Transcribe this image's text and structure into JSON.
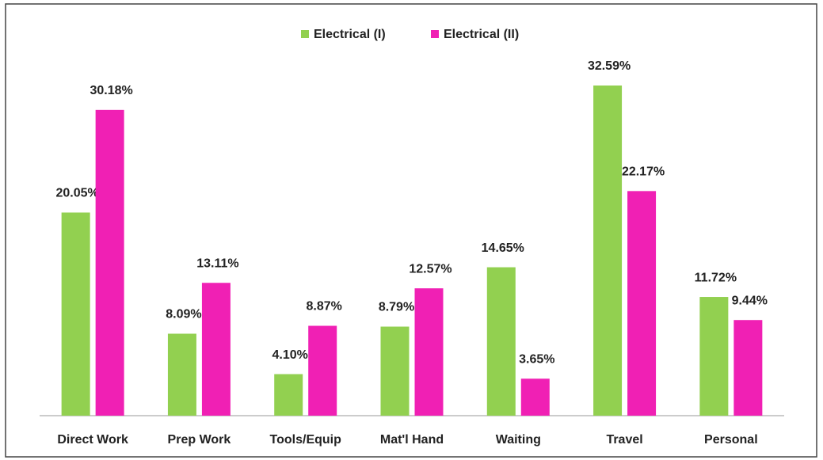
{
  "chart_data": {
    "type": "bar",
    "categories": [
      "Direct Work",
      "Prep Work",
      "Tools/Equip",
      "Mat'l Hand",
      "Waiting",
      "Travel",
      "Personal"
    ],
    "series": [
      {
        "name": "Electrical (I)",
        "color": "#92d050",
        "values": [
          20.05,
          8.09,
          4.1,
          8.79,
          14.65,
          32.59,
          11.72
        ],
        "value_labels": [
          "20.05%",
          "8.09%",
          "4.10%",
          "8.79%",
          "14.65%",
          "32.59%",
          "11.72%"
        ]
      },
      {
        "name": "Electrical (II)",
        "color": "#f020b4",
        "values": [
          30.18,
          13.11,
          8.87,
          12.57,
          3.65,
          22.17,
          9.44
        ],
        "value_labels": [
          "30.18%",
          "13.11%",
          "8.87%",
          "12.57%",
          "3.65%",
          "22.17%",
          "9.44%"
        ]
      }
    ],
    "legend": "top"
  }
}
